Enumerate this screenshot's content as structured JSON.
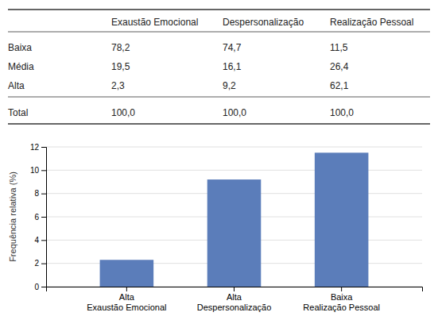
{
  "chart_data": [
    {
      "type": "table",
      "categories": [
        "Baixa",
        "Média",
        "Alta",
        "Total"
      ],
      "series": [
        {
          "name": "Exaustão Emocional",
          "values": [
            78.2,
            19.5,
            2.3,
            100.0
          ],
          "value_labels": [
            "78,2",
            "19,5",
            "2,3",
            "100,0"
          ]
        },
        {
          "name": "Despersonalização",
          "values": [
            74.7,
            16.1,
            9.2,
            100.0
          ],
          "value_labels": [
            "74,7",
            "16,1",
            "9,2",
            "100,0"
          ]
        },
        {
          "name": "Realização Pessoal",
          "values": [
            11.5,
            26.4,
            62.1,
            100.0
          ],
          "value_labels": [
            "11,5",
            "26,4",
            "62,1",
            "100,0"
          ]
        }
      ]
    },
    {
      "type": "bar",
      "categories": [
        "Alta\nExaustão Emocional",
        "Alta\nDespersonalização",
        "Baixa\nRealização Pessoal"
      ],
      "values": [
        2.3,
        9.2,
        11.5
      ],
      "color": "#5b7dba",
      "y_label": "Frequência relativa (%)",
      "ylim": [
        0,
        12
      ],
      "yticks": [
        0,
        2,
        4,
        6,
        8,
        10,
        12
      ],
      "grid": true
    }
  ]
}
